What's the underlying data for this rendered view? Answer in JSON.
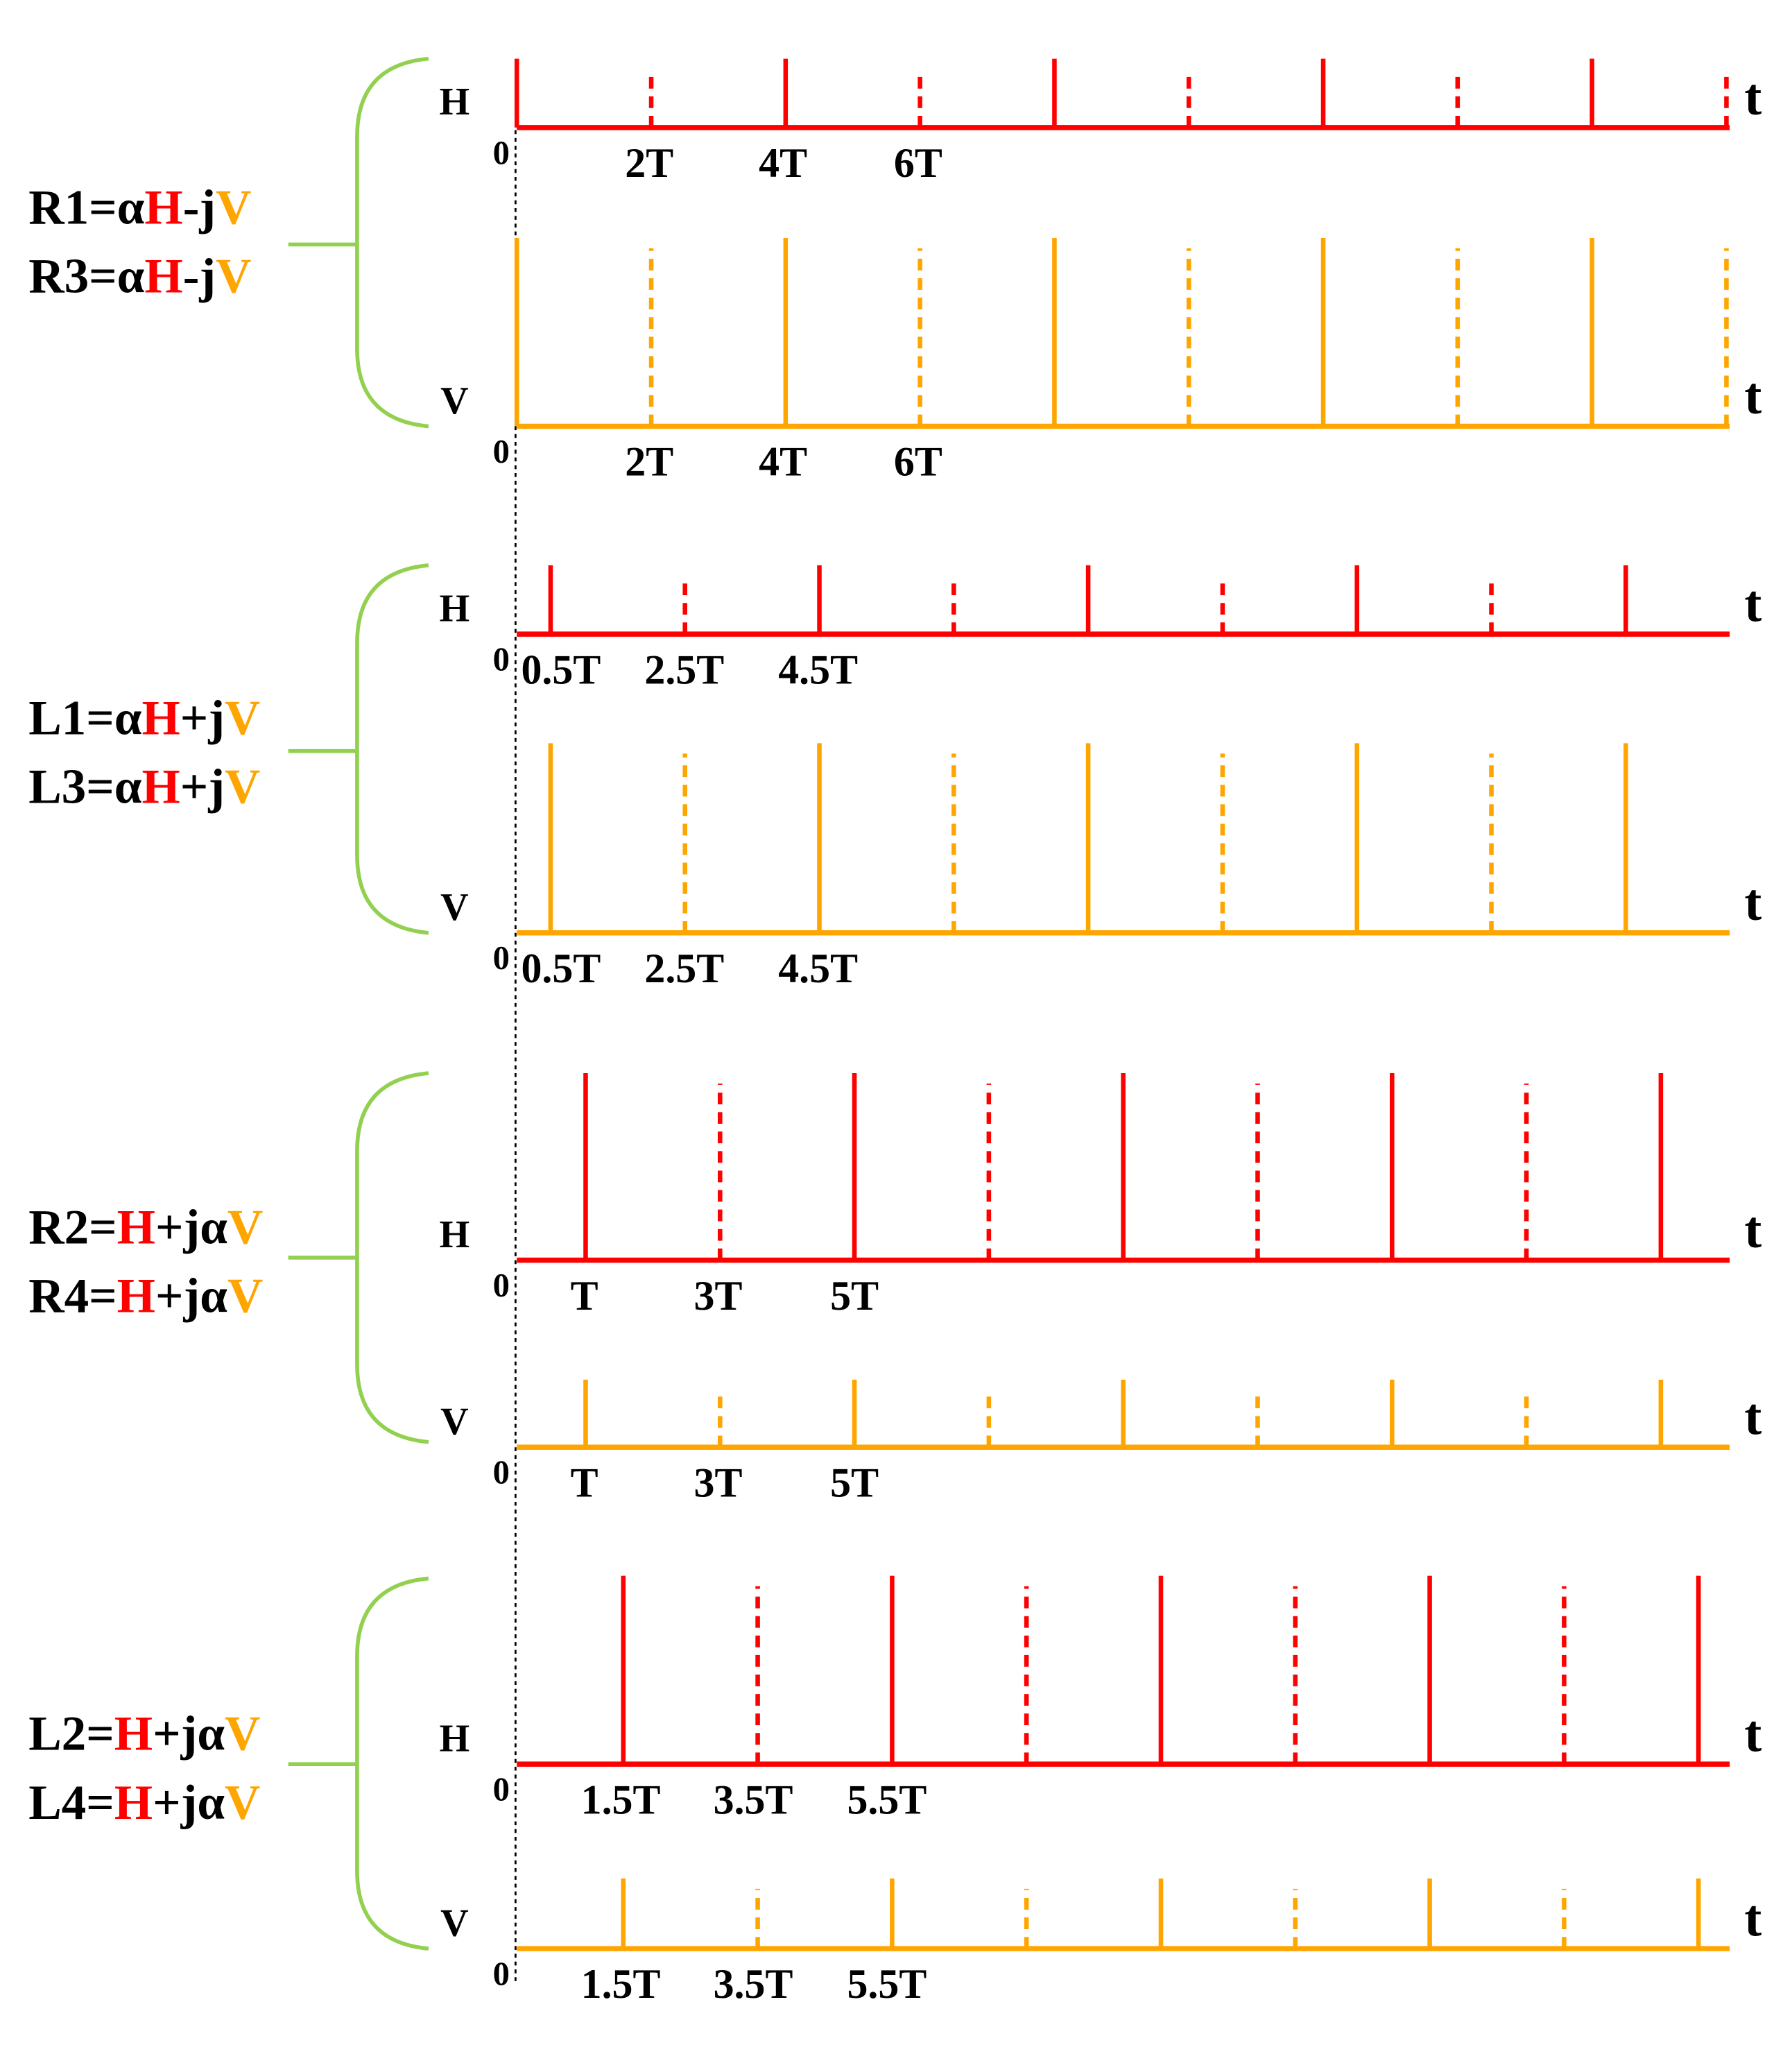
{
  "groups": [
    {
      "formulas": [
        [
          "R1=α",
          "H",
          "-j",
          "V"
        ],
        [
          "R3=α",
          "H",
          "-j",
          "V"
        ]
      ],
      "panels": [
        {
          "axis_label": "H",
          "origin": "0",
          "ticks": [
            "2T",
            "4T",
            "6T"
          ],
          "time_label": "t"
        },
        {
          "axis_label": "V",
          "origin": "0",
          "ticks": [
            "2T",
            "4T",
            "6T"
          ],
          "time_label": "t"
        }
      ]
    },
    {
      "formulas": [
        [
          "L1=α",
          "H",
          "+j",
          "V"
        ],
        [
          "L3=α",
          "H",
          "+j",
          "V"
        ]
      ],
      "panels": [
        {
          "axis_label": "H",
          "origin": "0",
          "ticks": [
            "0.5T",
            "2.5T",
            "4.5T"
          ],
          "time_label": "t"
        },
        {
          "axis_label": "V",
          "origin": "0",
          "ticks": [
            "0.5T",
            "2.5T",
            "4.5T"
          ],
          "time_label": "t"
        }
      ]
    },
    {
      "formulas": [
        [
          "R2=",
          "H",
          "+jα",
          "V"
        ],
        [
          "R4=",
          "H",
          "+jα",
          "V"
        ]
      ],
      "panels": [
        {
          "axis_label": "H",
          "origin": "0",
          "ticks": [
            "T",
            "3T",
            "5T"
          ],
          "time_label": "t"
        },
        {
          "axis_label": "V",
          "origin": "0",
          "ticks": [
            "T",
            "3T",
            "5T"
          ],
          "time_label": "t"
        }
      ]
    },
    {
      "formulas": [
        [
          "L2=",
          "H",
          "+jα",
          "V"
        ],
        [
          "L4=",
          "H",
          "+jα",
          "V"
        ]
      ],
      "panels": [
        {
          "axis_label": "H",
          "origin": "0",
          "ticks": [
            "1.5T",
            "3.5T",
            "5.5T"
          ],
          "time_label": "t"
        },
        {
          "axis_label": "V",
          "origin": "0",
          "ticks": [
            "1.5T",
            "3.5T",
            "5.5T"
          ],
          "time_label": "t"
        }
      ]
    }
  ]
}
